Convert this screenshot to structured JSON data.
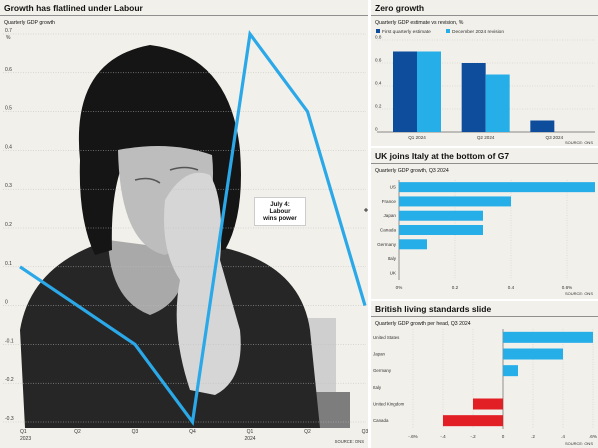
{
  "panels": {
    "main": {
      "title": "Growth has flatlined under Labour",
      "subtitle": "Quarterly GDP growth",
      "unit": "%",
      "callout_l1": "July 4:",
      "callout_l2": "Labour",
      "callout_l3": "wins power",
      "source": "SOURCE: ONS"
    },
    "zero": {
      "title": "Zero growth",
      "subtitle": "Quarterly GDP estimate vs revision, %",
      "source": "SOURCE: ONS"
    },
    "g7": {
      "title": "UK joins Italy at the bottom of G7",
      "subtitle": "Quarterly GDP growth, Q3 2024",
      "source": "SOURCE: ONS"
    },
    "living": {
      "title": "British living standards slide",
      "subtitle": "Quarterly GDP growth per head, Q3 2024",
      "source": "SOURCE: ONS"
    }
  },
  "colors": {
    "panel_bg": "#f2f0ea",
    "main_line": "#2ba8e8",
    "dark_blue": "#0d4d9c",
    "light_blue": "#26aee8",
    "negative_red": "#e31f26"
  },
  "chart_data": [
    {
      "type": "line",
      "id": "main",
      "categories": [
        "Q1",
        "Q2",
        "Q3",
        "Q4",
        "Q1",
        "Q2",
        "Q3"
      ],
      "year_labels": [
        "2023",
        "",
        "",
        "",
        "2024",
        "",
        ""
      ],
      "values": [
        0.1,
        0.0,
        -0.1,
        -0.3,
        0.7,
        0.5,
        0.0
      ],
      "ylim": [
        -0.3,
        0.7
      ],
      "yticks": [
        -0.3,
        -0.2,
        -0.1,
        0,
        0.1,
        0.2,
        0.3,
        0.4,
        0.5,
        0.6,
        0.7
      ],
      "ylabel": "%",
      "grid": true
    },
    {
      "type": "bar",
      "id": "zero",
      "categories": [
        "Q1 2024",
        "Q2 2024",
        "Q3 2024"
      ],
      "series": [
        {
          "name": "First quarterly estimate",
          "color": "#0d4d9c",
          "values": [
            0.7,
            0.6,
            0.1
          ]
        },
        {
          "name": "December 2024 revision",
          "color": "#26aee8",
          "values": [
            0.7,
            0.5,
            0.0
          ]
        }
      ],
      "ylim": [
        0,
        0.8
      ],
      "yticks": [
        0,
        0.2,
        0.4,
        0.6,
        0.8
      ],
      "legend": "top-left"
    },
    {
      "type": "bar",
      "orientation": "horizontal",
      "id": "g7",
      "categories": [
        "US",
        "France",
        "Japan",
        "Canada",
        "Germany",
        "Italy",
        "UK"
      ],
      "values": [
        0.7,
        0.4,
        0.3,
        0.3,
        0.1,
        0.0,
        0.0
      ],
      "xlim": [
        0,
        0.7
      ],
      "xticks": [
        0,
        0.2,
        0.4,
        0.6
      ],
      "xtick_labels": [
        "0%",
        "0.2",
        "0.4",
        "0.6%"
      ]
    },
    {
      "type": "bar",
      "orientation": "horizontal",
      "id": "living",
      "categories": [
        "United States",
        "Japan",
        "Germany",
        "Italy",
        "United Kingdom",
        "Canada"
      ],
      "values": [
        0.6,
        0.4,
        0.1,
        0.0,
        -0.2,
        -0.4
      ],
      "xlim": [
        -0.6,
        0.6
      ],
      "xticks": [
        -0.6,
        -0.4,
        -0.2,
        0,
        0.2,
        0.4,
        0.6
      ],
      "xtick_labels": [
        "-.6%",
        "-.4",
        "-.2",
        "0",
        ".2",
        ".4",
        ".6%"
      ]
    }
  ]
}
